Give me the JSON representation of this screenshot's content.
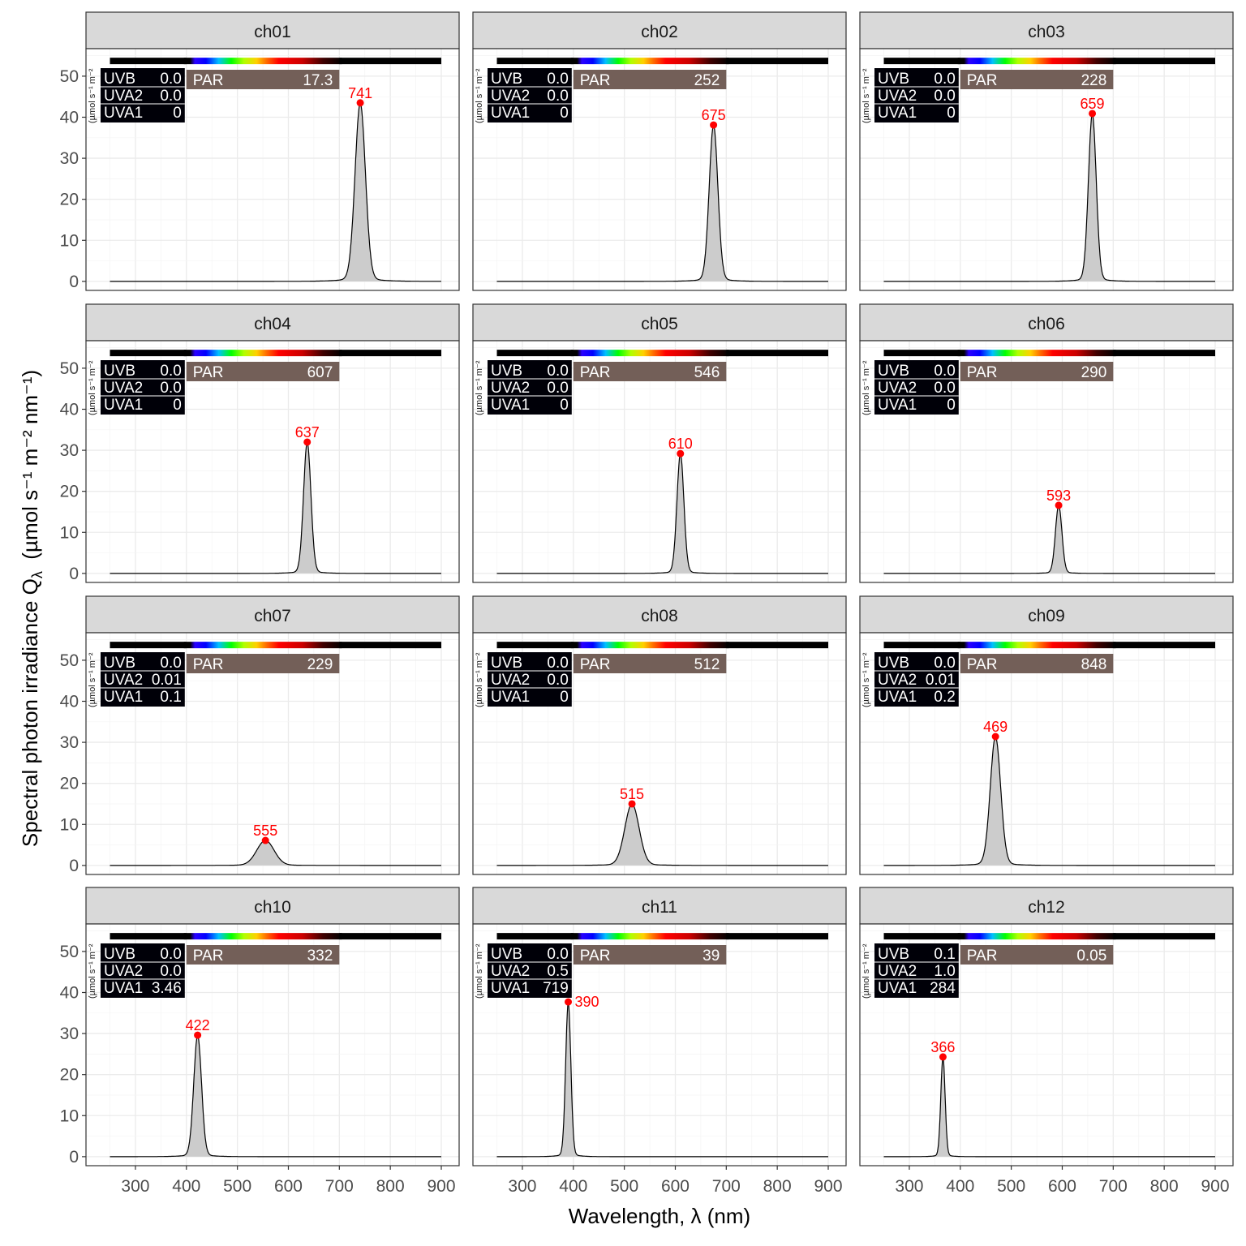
{
  "chart_data": {
    "type": "line",
    "subtype": "faceted-spectra",
    "xlabel": "Wavelength, λ (nm)",
    "ylabel_main": "Spectral  photon  irradiance  Q",
    "ylabel_sub": "λ",
    "ylabel_units": "(µmol s⁻¹ m⁻² nm⁻¹)",
    "inset_unit_label": "(µmol s⁻¹ m⁻²",
    "xlim": [
      203,
      935
    ],
    "ylim": [
      -2.2,
      56.7
    ],
    "xticks": [
      300,
      400,
      500,
      600,
      700,
      800,
      900
    ],
    "yticks": [
      0,
      10,
      20,
      30,
      40,
      50
    ],
    "x_range_data": [
      250,
      900
    ],
    "grid": true,
    "colors": {
      "fill": "#cccccc",
      "line": "#000000",
      "peak": "#ff0000",
      "par_box": "#735f58",
      "uv_box": "#000008",
      "strip": "#d9d9d9"
    },
    "waveband_labels": {
      "uv": [
        "UVB",
        "UVA2",
        "UVA1"
      ],
      "par": "PAR"
    },
    "panels": [
      {
        "name": "ch01",
        "peak_nm": 741,
        "peak_value": 43.5,
        "fwhm": 24,
        "par_value": "17.3",
        "uv_values": [
          "0.0",
          "0.0",
          "0"
        ]
      },
      {
        "name": "ch02",
        "peak_nm": 675,
        "peak_value": 38.1,
        "fwhm": 20,
        "par_value": "252",
        "uv_values": [
          "0.0",
          "0.0",
          "0"
        ]
      },
      {
        "name": "ch03",
        "peak_nm": 659,
        "peak_value": 40.9,
        "fwhm": 18,
        "par_value": "228",
        "uv_values": [
          "0.0",
          "0.0",
          "0"
        ]
      },
      {
        "name": "ch04",
        "peak_nm": 637,
        "peak_value": 32.0,
        "fwhm": 17,
        "par_value": "607",
        "uv_values": [
          "0.0",
          "0.0",
          "0"
        ]
      },
      {
        "name": "ch05",
        "peak_nm": 610,
        "peak_value": 29.2,
        "fwhm": 16,
        "par_value": "546",
        "uv_values": [
          "0.0",
          "0.0",
          "0"
        ]
      },
      {
        "name": "ch06",
        "peak_nm": 593,
        "peak_value": 16.6,
        "fwhm": 15,
        "par_value": "290",
        "uv_values": [
          "0.0",
          "0.0",
          "0"
        ]
      },
      {
        "name": "ch07",
        "peak_nm": 555,
        "peak_value": 6.1,
        "fwhm": 40,
        "par_value": "229",
        "uv_values": [
          "0.0",
          "0.01",
          "0.1"
        ]
      },
      {
        "name": "ch08",
        "peak_nm": 515,
        "peak_value": 15.0,
        "fwhm": 33,
        "par_value": "512",
        "uv_values": [
          "0.0",
          "0.0",
          "0"
        ]
      },
      {
        "name": "ch09",
        "peak_nm": 469,
        "peak_value": 31.4,
        "fwhm": 24,
        "par_value": "848",
        "uv_values": [
          "0.0",
          "0.01",
          "0.2"
        ]
      },
      {
        "name": "ch10",
        "peak_nm": 422,
        "peak_value": 29.6,
        "fwhm": 18,
        "par_value": "332",
        "uv_values": [
          "0.0",
          "0.0",
          "3.46"
        ]
      },
      {
        "name": "ch11",
        "peak_nm": 390,
        "peak_value": 37.7,
        "fwhm": 12,
        "par_value": "39",
        "uv_values": [
          "0.0",
          "0.5",
          "719"
        ]
      },
      {
        "name": "ch12",
        "peak_nm": 366,
        "peak_value": 24.3,
        "fwhm": 10,
        "par_value": "0.05",
        "uv_values": [
          "0.1",
          "1.0",
          "284"
        ]
      }
    ]
  }
}
